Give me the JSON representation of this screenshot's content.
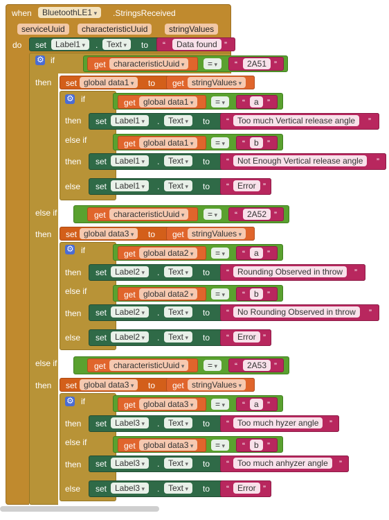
{
  "event": {
    "when": "when",
    "component": "BluetoothLE1",
    "event_name": ".StringsReceived",
    "params": [
      "serviceUuid",
      "characteristicUuid",
      "stringValues"
    ],
    "do": "do"
  },
  "kw": {
    "set": "set",
    "to": "to",
    "get": "get",
    "if": "if",
    "then": "then",
    "else_if": "else if",
    "else": "else",
    "dot": ".",
    "eq": "=",
    "quote_open": "“",
    "quote_close": "”",
    "prop_text": "Text"
  },
  "set_label1_top": {
    "component": "Label1",
    "value": "Data found"
  },
  "branches": [
    {
      "keyword": "if",
      "uuid_var": "characteristicUuid",
      "uuid": "2A51",
      "global_var": "global data1",
      "strings_var": "stringValues",
      "inner": {
        "cond_var": "global data1",
        "label": "Label1",
        "a": "a",
        "b": "b",
        "a_text": "Too much Vertical release angle",
        "b_text": "Not Enough Vertical release angle",
        "else_text": "Error"
      }
    },
    {
      "keyword": "else if",
      "uuid_var": "characteristicUuid",
      "uuid": "2A52",
      "global_var": "global data3",
      "strings_var": "stringValues",
      "inner": {
        "cond_var": "global data2",
        "label": "Label2",
        "a": "a",
        "b": "b",
        "a_text": "Rounding Observed in throw",
        "b_text": "No Rounding Observed in throw",
        "else_text": "Error"
      }
    },
    {
      "keyword": "else if",
      "uuid_var": "characteristicUuid",
      "uuid": "2A53",
      "global_var": "global data3",
      "strings_var": "stringValues",
      "inner": {
        "cond_var": "global data3",
        "label": "Label3",
        "a": "a",
        "b": "b",
        "a_text": "Too much hyzer angle",
        "b_text": "Too much anhyzer angle",
        "else_text": "Error"
      }
    }
  ],
  "colors": {
    "event": "#c08a2e",
    "control": "#b89337",
    "component_set": "#2f6a47",
    "variable": "#e0652c",
    "text": "#b8275e",
    "logic": "#5aa12f"
  }
}
